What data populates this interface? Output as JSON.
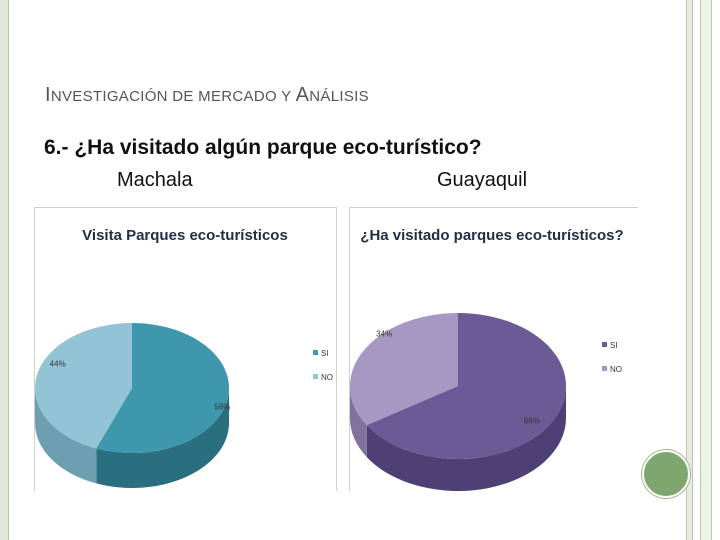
{
  "slide": {
    "title_first_letter": "I",
    "title_rest": "NVESTIGACIÓN DE MERCADO Y ",
    "title_second_first_letter": "A",
    "title_second_rest": "NÁLISIS",
    "question": "6.- ¿Ha visitado algún  parque eco-turístico?",
    "city_left": "Machala",
    "city_right": "Guayaquil"
  },
  "chart_data": [
    {
      "type": "pie",
      "title": "Visita Parques eco-turísticos",
      "categories": [
        "SI",
        "NO"
      ],
      "values": [
        56,
        44
      ],
      "labels": [
        "56%",
        "44%"
      ],
      "colors": [
        "#3f97ad",
        "#93c4d6"
      ],
      "side_colors": [
        "#2a6f80",
        "#6e9fb0"
      ],
      "legend_placement": "right"
    },
    {
      "type": "pie",
      "title": "¿Ha visitado parques eco-turísticos?",
      "categories": [
        "SI",
        "NO"
      ],
      "values": [
        66,
        34
      ],
      "labels": [
        "66%",
        "34%"
      ],
      "colors": [
        "#6c5a96",
        "#a698c2"
      ],
      "side_colors": [
        "#4e3f74",
        "#7f729d"
      ],
      "legend_placement": "right"
    }
  ],
  "colors": {
    "frame": "#dfe8d6",
    "accent_circle": "#7ea66e"
  }
}
